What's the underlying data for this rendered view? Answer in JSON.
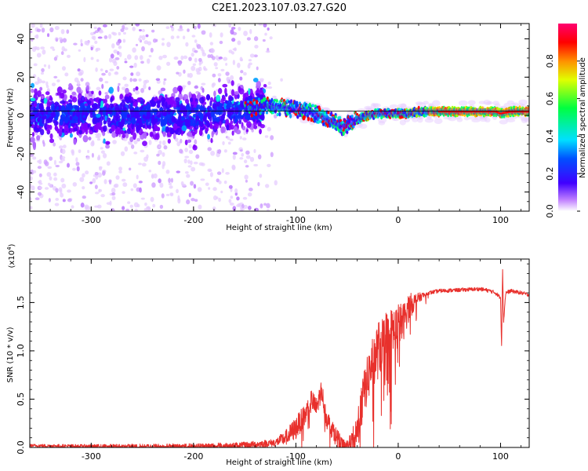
{
  "title": "C2E1.2023.107.03.27.G20",
  "colors": {
    "background": "#ffffff",
    "snr_line": "#e8302c",
    "spectrogram_low": "#cc99ff",
    "spectrogram_mid": "#4000ff",
    "spectrogram_peak": "#ff0000"
  },
  "chart_data": [
    {
      "name": "spectrogram",
      "type": "heatmap",
      "xlabel": "Height of straight line (km)",
      "ylabel": "Frequency (Hz)",
      "xlim": [
        -360,
        128
      ],
      "ylim": [
        -50,
        48
      ],
      "xticks": [
        -300,
        -200,
        -100,
        0,
        100
      ],
      "xtick_labels": [
        "-300",
        "-200",
        "-100",
        "0",
        "100"
      ],
      "yticks": [
        -40,
        -20,
        0,
        20,
        40
      ],
      "ytick_labels": [
        "-40",
        "-20",
        "0",
        "20",
        "40"
      ],
      "colorbar": {
        "label": "Normalized spectral amplitude",
        "range": [
          0.0,
          1.0
        ],
        "ticks": [
          0.0,
          0.2,
          0.4,
          0.6,
          0.8
        ],
        "tick_labels": [
          "0.0",
          "0.2",
          "0.4",
          "0.6",
          "0.8"
        ],
        "colormap": "rainbow (white-purple-blue-cyan-green-yellow-red-magenta)"
      },
      "ridge": {
        "x": [
          -360,
          -300,
          -200,
          -150,
          -130,
          -110,
          -90,
          -80,
          -70,
          -60,
          -55,
          -50,
          -45,
          -40,
          -30,
          -20,
          -10,
          0,
          10,
          20,
          40,
          60,
          80,
          90,
          95,
          100,
          110,
          128
        ],
        "y": [
          0,
          0,
          0,
          3,
          5,
          4,
          2,
          1,
          -2,
          -4,
          -6,
          -5,
          -3,
          -2,
          0,
          1,
          1,
          1,
          1,
          2,
          2,
          2,
          2,
          2,
          2,
          1,
          2,
          2
        ]
      }
    },
    {
      "name": "snr",
      "type": "line",
      "xlabel": "Height of straight line (km)",
      "ylabel": "SNR (10 * v/v)",
      "scale_note": "(x10",
      "scale_exp": "4",
      "scale_close": ")",
      "xlim": [
        -360,
        128
      ],
      "ylim": [
        0,
        1.95
      ],
      "xticks": [
        -300,
        -200,
        -100,
        0,
        100
      ],
      "xtick_labels": [
        "-300",
        "-200",
        "-100",
        "0",
        "100"
      ],
      "yticks": [
        0.0,
        0.5,
        1.0,
        1.5
      ],
      "ytick_labels": [
        "0.0",
        "0.5",
        "1.0",
        "1.5"
      ],
      "envelope_x": [
        -360,
        -300,
        -200,
        -150,
        -120,
        -110,
        -100,
        -90,
        -85,
        -80,
        -75,
        -70,
        -60,
        -55,
        -50,
        -45,
        -40,
        -35,
        -30,
        -25,
        -20,
        -15,
        -10,
        -5,
        0,
        5,
        10,
        20,
        30,
        40,
        60,
        80,
        90,
        95,
        100,
        101,
        102,
        103,
        105,
        110,
        120,
        128
      ],
      "envelope_y": [
        0.02,
        0.01,
        0.01,
        0.02,
        0.05,
        0.1,
        0.2,
        0.35,
        0.5,
        0.4,
        0.6,
        0.3,
        0.1,
        0.02,
        0.02,
        0.05,
        0.2,
        0.5,
        0.7,
        0.9,
        1.0,
        1.1,
        1.15,
        1.2,
        1.25,
        1.3,
        1.45,
        1.55,
        1.6,
        1.62,
        1.63,
        1.64,
        1.62,
        1.6,
        1.55,
        1.05,
        1.85,
        1.3,
        1.6,
        1.62,
        1.6,
        1.58
      ],
      "noise_amp": {
        "x": [
          -360,
          -120,
          -100,
          -60,
          -50,
          -40,
          -20,
          0,
          10,
          20,
          30,
          128
        ],
        "amp": [
          0.015,
          0.04,
          0.12,
          0.1,
          0.05,
          0.2,
          0.3,
          0.25,
          0.15,
          0.05,
          0.02,
          0.02
        ]
      }
    }
  ]
}
